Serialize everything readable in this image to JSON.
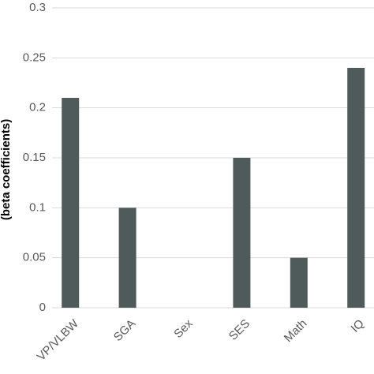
{
  "chart_data": {
    "type": "bar",
    "y_axis_label": "(beta coefficients)",
    "categories": [
      "VP/VLBW",
      "SGA",
      "Sex",
      "SES",
      "Math",
      "IQ"
    ],
    "values": [
      0.21,
      0.1,
      0,
      0.15,
      0.05,
      0.24
    ],
    "color": "#4f5b5a",
    "ylim": [
      0,
      0.3
    ],
    "yticks": [
      0,
      0.05,
      0.1,
      0.15,
      0.2,
      0.25,
      0.3
    ],
    "grid": true
  }
}
